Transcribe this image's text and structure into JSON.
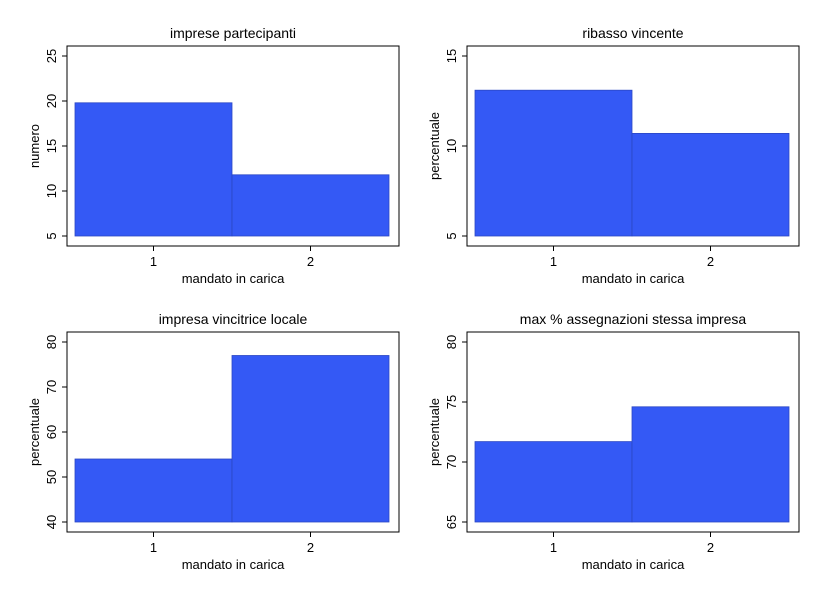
{
  "chart_data": [
    {
      "type": "bar",
      "title": "imprese partecipanti",
      "xlabel": "mandato in carica",
      "ylabel": "numero",
      "categories": [
        "1",
        "2"
      ],
      "values": [
        19.8,
        11.8
      ],
      "ylim": [
        5,
        25
      ],
      "yticks": [
        "5",
        "10",
        "15",
        "20",
        "25"
      ],
      "bar_color": "#3459f5"
    },
    {
      "type": "bar",
      "title": "ribasso vincente",
      "xlabel": "mandato in carica",
      "ylabel": "percentuale",
      "categories": [
        "1",
        "2"
      ],
      "values": [
        13.1,
        10.7
      ],
      "ylim": [
        5,
        15
      ],
      "yticks": [
        "5",
        "10",
        "15"
      ],
      "bar_color": "#3459f5"
    },
    {
      "type": "bar",
      "title": "impresa vincitrice locale",
      "xlabel": "mandato in carica",
      "ylabel": "percentuale",
      "categories": [
        "1",
        "2"
      ],
      "values": [
        54,
        77
      ],
      "ylim": [
        40,
        80
      ],
      "yticks": [
        "40",
        "50",
        "60",
        "70",
        "80"
      ],
      "bar_color": "#3459f5"
    },
    {
      "type": "bar",
      "title": "max % assegnazioni stessa impresa",
      "xlabel": "mandato in carica",
      "ylabel": "percentuale",
      "categories": [
        "1",
        "2"
      ],
      "values": [
        71.7,
        74.6
      ],
      "ylim": [
        65,
        80
      ],
      "yticks": [
        "65",
        "70",
        "75",
        "80"
      ],
      "bar_color": "#3459f5"
    }
  ]
}
